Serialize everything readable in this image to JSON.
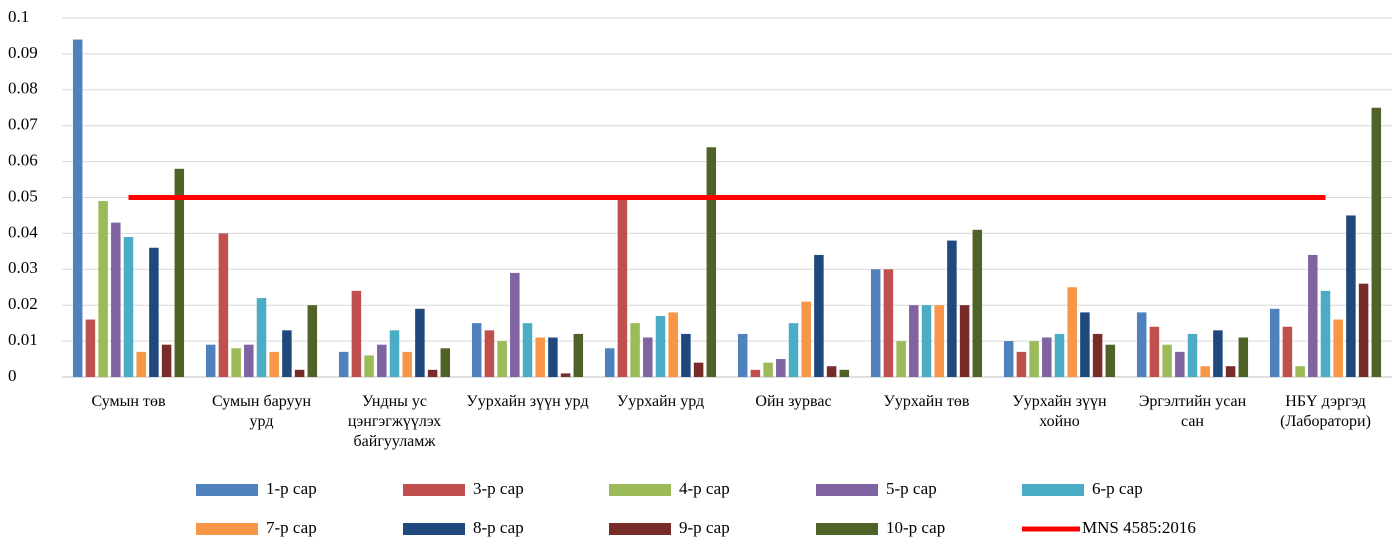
{
  "chart_data": {
    "type": "bar",
    "categories": [
      "Сумын төв",
      "Сумын баруун урд",
      "Ундны ус цэнгэгжүүлэх байгууламж",
      "Уурхайн зүүн урд",
      "Уурхайн урд",
      "Ойн зурвас",
      "Уурхайн төв",
      "Уурхайн зүүн хойно",
      "Эргэлтийн усан сан",
      "НБҮ дэргэд (Лаборатори)"
    ],
    "series": [
      {
        "name": "1-р сар",
        "color": "#4f81bd",
        "values": [
          0.094,
          0.009,
          0.007,
          0.015,
          0.008,
          0.012,
          0.03,
          0.01,
          0.018,
          0.019
        ]
      },
      {
        "name": "3-р сар",
        "color": "#c0504d",
        "values": [
          0.016,
          0.04,
          0.024,
          0.013,
          0.05,
          0.002,
          0.03,
          0.007,
          0.014,
          0.014
        ]
      },
      {
        "name": "4-р сар",
        "color": "#9bbb59",
        "values": [
          0.049,
          0.008,
          0.006,
          0.01,
          0.015,
          0.004,
          0.01,
          0.01,
          0.009,
          0.003
        ]
      },
      {
        "name": "5-р сар",
        "color": "#8064a2",
        "values": [
          0.043,
          0.009,
          0.009,
          0.029,
          0.011,
          0.005,
          0.02,
          0.011,
          0.007,
          0.034
        ]
      },
      {
        "name": "6-р  сар",
        "color": "#4bacc6",
        "values": [
          0.039,
          0.022,
          0.013,
          0.015,
          0.017,
          0.015,
          0.02,
          0.012,
          0.012,
          0.024
        ]
      },
      {
        "name": "7-р сар",
        "color": "#f79646",
        "values": [
          0.007,
          0.007,
          0.007,
          0.011,
          0.018,
          0.021,
          0.02,
          0.025,
          0.003,
          0.016
        ]
      },
      {
        "name": "8-р сар",
        "color": "#1f497d",
        "values": [
          0.036,
          0.013,
          0.019,
          0.011,
          0.012,
          0.034,
          0.038,
          0.018,
          0.013,
          0.045
        ]
      },
      {
        "name": "9-р сар",
        "color": "#772c2a",
        "values": [
          0.009,
          0.002,
          0.002,
          0.001,
          0.004,
          0.003,
          0.02,
          0.012,
          0.003,
          0.026
        ]
      },
      {
        "name": "10-р сар",
        "color": "#4f6228",
        "values": [
          0.058,
          0.02,
          0.008,
          0.012,
          0.064,
          0.002,
          0.041,
          0.009,
          0.011,
          0.075
        ]
      }
    ],
    "reference": {
      "name": "MNS 4585:2016",
      "color": "#ff0000",
      "value": 0.05
    },
    "ylim": [
      0,
      0.1
    ],
    "yticks": [
      0,
      0.01,
      0.02,
      0.03,
      0.04,
      0.05,
      0.06,
      0.07,
      0.08,
      0.09,
      0.1
    ],
    "grid": true
  }
}
